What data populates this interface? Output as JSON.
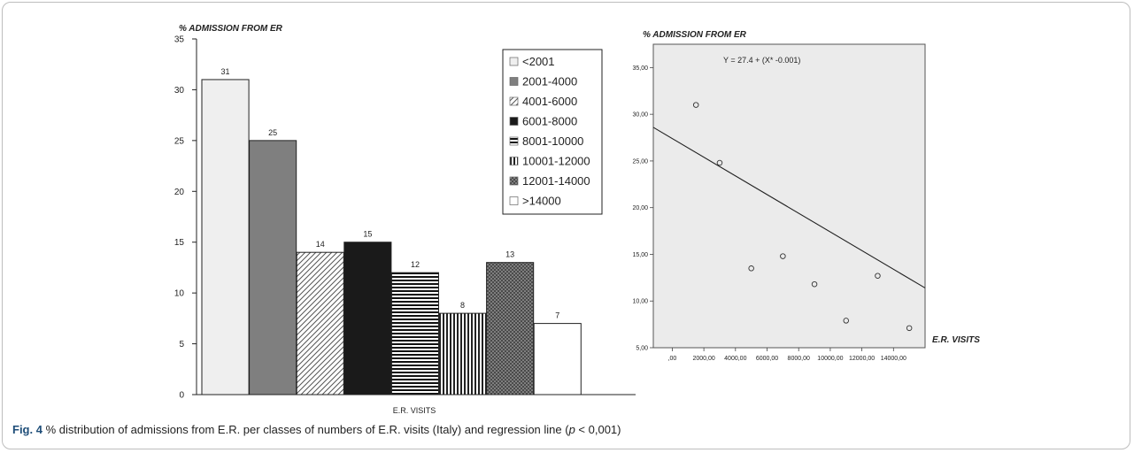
{
  "caption": {
    "fig_label": "Fig. 4",
    "text_before": " % distribution of admissions from E.R. per classes of numbers of E.R. visits (Italy) and regression line (",
    "p_symbol": "p",
    "text_after": " < 0,001)"
  },
  "chart_data": [
    {
      "type": "bar",
      "title": "% ADMISSION FROM ER",
      "xlabel": "E.R. VISITS",
      "ylabel": "",
      "ylim": [
        0,
        35
      ],
      "yticks": [
        "0",
        "5",
        "10",
        "15",
        "20",
        "25",
        "30",
        "35"
      ],
      "grid": false,
      "legend_position": "top-right",
      "categories": [
        "<2001",
        "2001-4000",
        "4001-6000",
        "6001-8000",
        "8001-10000",
        "10001-12000",
        "12001-14000",
        ">14000"
      ],
      "values": [
        31,
        25,
        14,
        15,
        12,
        8,
        13,
        7
      ],
      "data_labels": [
        "31",
        "25",
        "14",
        "15",
        "12",
        "8",
        "13",
        "7"
      ],
      "patterns": [
        "light-gray",
        "dark-gray",
        "diagonal-hatch",
        "solid-black",
        "horizontal-stripes",
        "vertical-stripes",
        "dots",
        "white"
      ]
    },
    {
      "type": "scatter",
      "title": "% ADMISSION FROM ER",
      "xlabel": "E.R. VISITS",
      "ylabel": "",
      "xlim": [
        -1200,
        16000
      ],
      "ylim": [
        5,
        37.5
      ],
      "xticks": [
        0,
        2000,
        4000,
        6000,
        8000,
        10000,
        12000,
        14000
      ],
      "xtick_labels": [
        ",00",
        "2000,00",
        "4000,00",
        "6000,00",
        "8000,00",
        "10000,00",
        "12000,00",
        "14000,00"
      ],
      "yticks": [
        5,
        10,
        15,
        20,
        25,
        30,
        35
      ],
      "ytick_labels": [
        "5,00",
        "10,00",
        "15,00",
        "20,00",
        "25,00",
        "30,00",
        "35,00"
      ],
      "background": "#ebebeb",
      "points": [
        {
          "x": 1500,
          "y": 31
        },
        {
          "x": 3000,
          "y": 24.8
        },
        {
          "x": 5000,
          "y": 13.5
        },
        {
          "x": 7000,
          "y": 14.8
        },
        {
          "x": 9000,
          "y": 11.8
        },
        {
          "x": 11000,
          "y": 7.9
        },
        {
          "x": 13000,
          "y": 12.7
        },
        {
          "x": 15000,
          "y": 7.1
        }
      ],
      "regression": {
        "intercept": 27.4,
        "slope": -0.001,
        "equation": "Y = 27.4 + (X* -0.001)"
      }
    }
  ]
}
